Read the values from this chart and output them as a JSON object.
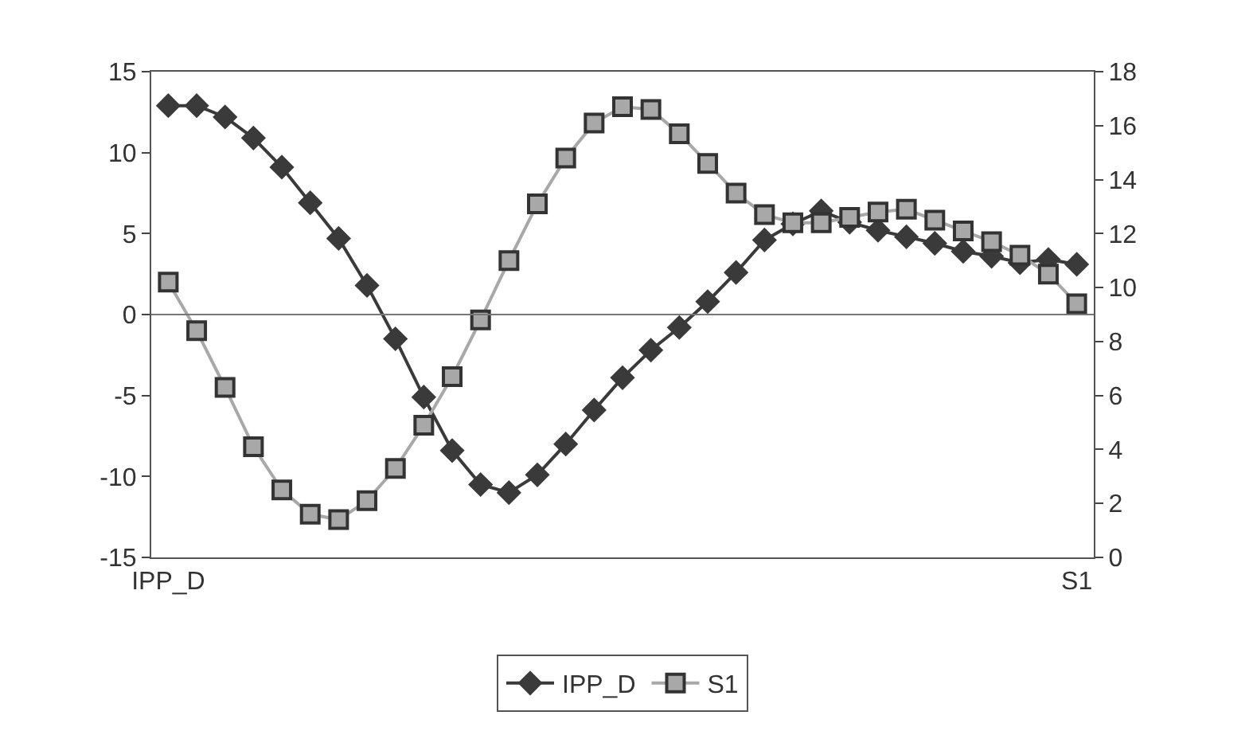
{
  "chart_data": {
    "type": "line",
    "categories": [
      "IPP_D",
      null,
      null,
      null,
      null,
      null,
      null,
      null,
      null,
      null,
      null,
      null,
      null,
      null,
      null,
      null,
      null,
      null,
      null,
      null,
      null,
      null,
      null,
      null,
      null,
      null,
      null,
      null,
      null,
      null,
      null,
      null,
      "S1"
    ],
    "series": [
      {
        "name": "IPP_D",
        "color": "#3a3a3a",
        "marker": "diamond",
        "values": [
          12.9,
          12.9,
          12.2,
          10.9,
          9.1,
          6.9,
          4.7,
          1.8,
          -1.5,
          -5.1,
          -8.4,
          -10.5,
          -11.0,
          -9.9,
          -8.0,
          -5.9,
          -3.9,
          -2.2,
          -0.8,
          0.8,
          2.6,
          4.6,
          5.6,
          6.4,
          5.7,
          5.2,
          4.8,
          4.4,
          3.9,
          3.6,
          3.2,
          3.4,
          3.1
        ]
      },
      {
        "name": "S1",
        "color": "#a8a8a8",
        "marker": "square",
        "axis": "y2",
        "values": [
          10.2,
          8.4,
          6.3,
          4.1,
          2.5,
          1.6,
          1.4,
          2.1,
          3.3,
          4.9,
          6.7,
          8.8,
          11.0,
          13.1,
          14.8,
          16.1,
          16.7,
          16.6,
          15.7,
          14.6,
          13.5,
          12.7,
          12.4,
          12.4,
          12.6,
          12.8,
          12.9,
          12.5,
          12.1,
          11.7,
          11.2,
          10.5,
          9.4
        ]
      }
    ],
    "ylim": [
      -15,
      15
    ],
    "yticks": [
      -15,
      -10,
      -5,
      0,
      5,
      10,
      15
    ],
    "y2lim": [
      0,
      18
    ],
    "y2ticks": [
      0,
      2,
      4,
      6,
      8,
      10,
      12,
      14,
      16,
      18
    ],
    "ref_lines": [
      {
        "axis": "y",
        "value": 0,
        "color": "#777777"
      }
    ],
    "legend": "bottom",
    "line_style": "solid"
  }
}
